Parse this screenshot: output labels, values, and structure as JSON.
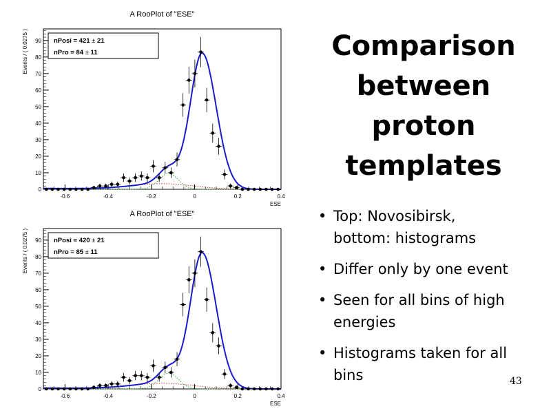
{
  "slide": {
    "title_lines": [
      "Comparison",
      "between",
      "proton",
      "templates"
    ],
    "bullets": [
      {
        "line1": "Top: Novosibirsk,",
        "line2": "bottom: histograms"
      },
      {
        "line1": "Differ only by one event",
        "line2": ""
      },
      {
        "line1": "Seen for all bins of high",
        "line2": "energies"
      },
      {
        "line1": "Histograms taken for all",
        "line2": "bins"
      }
    ],
    "page_number": "43"
  },
  "chart_data": [
    {
      "type": "scatter",
      "title": "A RooPlot of \"ESE\"",
      "xlabel": "ESE",
      "ylabel": "Events / ( 0.0275 )",
      "xlim": [
        -0.7,
        0.4
      ],
      "ylim": [
        0,
        97
      ],
      "xticks": [
        -0.6,
        -0.4,
        -0.2,
        0,
        0.2,
        0.4
      ],
      "xtick_labels": [
        "-0.6",
        "-0.4",
        "-0.2",
        "0",
        "0.2",
        "0.4"
      ],
      "yticks": [
        0,
        10,
        20,
        30,
        40,
        50,
        60,
        70,
        80,
        90
      ],
      "ytick_labels": [
        "0",
        "10",
        "20",
        "30",
        "40",
        "50",
        "60",
        "70",
        "80",
        "90"
      ],
      "legend_location": "top-left",
      "legend": [
        {
          "label": "nPosi = ",
          "value": "421",
          "error": "21"
        },
        {
          "label": "nPro = ",
          "value": "84",
          "error": "11"
        }
      ],
      "series": [
        {
          "kind": "data-points",
          "x": [
            -0.6863,
            -0.6588,
            -0.6313,
            -0.6038,
            -0.5763,
            -0.5488,
            -0.5213,
            -0.4938,
            -0.4663,
            -0.4388,
            -0.4113,
            -0.3838,
            -0.3563,
            -0.3288,
            -0.3013,
            -0.2738,
            -0.2463,
            -0.2188,
            -0.1913,
            -0.1638,
            -0.1363,
            -0.1088,
            -0.0813,
            -0.0538,
            -0.0263,
            0.0012,
            0.0287,
            0.0562,
            0.0837,
            0.1112,
            0.1387,
            0.1662,
            0.1937,
            0.2212,
            0.2487,
            0.2762,
            0.3037,
            0.3312,
            0.3587,
            0.3862
          ],
          "y": [
            0,
            0,
            0,
            0,
            0,
            0,
            0,
            0,
            1,
            2,
            2,
            3,
            3,
            7,
            5,
            7,
            8,
            7,
            14,
            7,
            13,
            10,
            18,
            51,
            66,
            70,
            83,
            54,
            34,
            26,
            9,
            2,
            1,
            0,
            0,
            0,
            0,
            0,
            0,
            0
          ]
        },
        {
          "kind": "total-fit",
          "color": "#1a1acc"
        },
        {
          "kind": "background-component",
          "color": "#cc3333"
        },
        {
          "kind": "proton-component",
          "color": "#33aa33"
        }
      ]
    },
    {
      "type": "scatter",
      "title": "A RooPlot of \"ESE\"",
      "xlabel": "ESE",
      "ylabel": "Events / ( 0.0275 )",
      "xlim": [
        -0.7,
        0.4
      ],
      "ylim": [
        0,
        97
      ],
      "xticks": [
        -0.6,
        -0.4,
        -0.2,
        0,
        0.2,
        0.4
      ],
      "xtick_labels": [
        "-0.6",
        "-0.4",
        "-0.2",
        "0",
        "0.2",
        "0.4"
      ],
      "yticks": [
        0,
        10,
        20,
        30,
        40,
        50,
        60,
        70,
        80,
        90
      ],
      "ytick_labels": [
        "0",
        "10",
        "20",
        "30",
        "40",
        "50",
        "60",
        "70",
        "80",
        "90"
      ],
      "legend_location": "top-left",
      "legend": [
        {
          "label": "nPosi = ",
          "value": "420",
          "error": "21"
        },
        {
          "label": "nPro = ",
          "value": "85",
          "error": "11"
        }
      ],
      "series": [
        {
          "kind": "data-points",
          "x": [
            -0.6863,
            -0.6588,
            -0.6313,
            -0.6038,
            -0.5763,
            -0.5488,
            -0.5213,
            -0.4938,
            -0.4663,
            -0.4388,
            -0.4113,
            -0.3838,
            -0.3563,
            -0.3288,
            -0.3013,
            -0.2738,
            -0.2463,
            -0.2188,
            -0.1913,
            -0.1638,
            -0.1363,
            -0.1088,
            -0.0813,
            -0.0538,
            -0.0263,
            0.0012,
            0.0287,
            0.0562,
            0.0837,
            0.1112,
            0.1387,
            0.1662,
            0.1937,
            0.2212,
            0.2487,
            0.2762,
            0.3037,
            0.3312,
            0.3587,
            0.3862
          ],
          "y": [
            0,
            0,
            0,
            0,
            0,
            0,
            0,
            0,
            1,
            2,
            2,
            3,
            3,
            7,
            5,
            8,
            8,
            7,
            14,
            7,
            13,
            10,
            18,
            51,
            66,
            70,
            83,
            54,
            34,
            26,
            9,
            2,
            1,
            0,
            0,
            0,
            0,
            0,
            0,
            0
          ]
        },
        {
          "kind": "total-fit",
          "color": "#1a1acc"
        },
        {
          "kind": "background-component",
          "color": "#cc3333"
        },
        {
          "kind": "proton-component",
          "color": "#33aa33"
        }
      ]
    }
  ]
}
